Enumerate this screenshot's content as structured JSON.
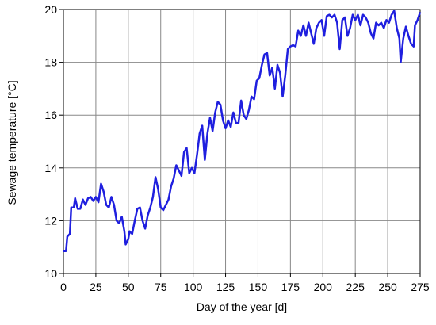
{
  "chart_data": {
    "type": "line",
    "xlabel": "Day of the year [d]",
    "ylabel": "Sewage temperature [°C]",
    "xlim": [
      0,
      275
    ],
    "ylim": [
      10,
      20
    ],
    "xticks": [
      0,
      25,
      50,
      75,
      100,
      125,
      150,
      175,
      200,
      225,
      250,
      275
    ],
    "yticks": [
      10,
      12,
      14,
      16,
      18,
      20
    ],
    "grid": true,
    "x": [
      0,
      2,
      3,
      5,
      6,
      8,
      9,
      11,
      13,
      15,
      17,
      19,
      21,
      23,
      25,
      27,
      29,
      31,
      33,
      35,
      37,
      39,
      41,
      43,
      45,
      47,
      48,
      50,
      51,
      53,
      55,
      57,
      59,
      61,
      63,
      65,
      67,
      69,
      71,
      73,
      75,
      77,
      79,
      81,
      83,
      85,
      87,
      89,
      91,
      93,
      95,
      97,
      99,
      101,
      103,
      105,
      107,
      109,
      111,
      113,
      115,
      117,
      119,
      121,
      123,
      125,
      127,
      129,
      131,
      133,
      135,
      137,
      139,
      141,
      143,
      145,
      147,
      149,
      151,
      153,
      155,
      157,
      159,
      161,
      163,
      165,
      167,
      169,
      171,
      173,
      175,
      177,
      179,
      181,
      183,
      185,
      187,
      189,
      191,
      193,
      195,
      197,
      199,
      201,
      203,
      205,
      207,
      209,
      211,
      213,
      215,
      217,
      219,
      221,
      223,
      225,
      227,
      229,
      231,
      233,
      235,
      237,
      239,
      241,
      243,
      245,
      247,
      249,
      251,
      253,
      255,
      257,
      259,
      260,
      262,
      264,
      266,
      268,
      270,
      271,
      273,
      275
    ],
    "series": [
      {
        "name": "Sewage temperature",
        "color": "#1f1fdf",
        "values": [
          10.85,
          10.85,
          11.4,
          11.5,
          12.5,
          12.5,
          12.85,
          12.45,
          12.45,
          12.8,
          12.6,
          12.85,
          12.9,
          12.75,
          12.9,
          12.7,
          13.4,
          13.1,
          12.6,
          12.5,
          12.9,
          12.6,
          12.0,
          11.9,
          12.15,
          11.6,
          11.1,
          11.3,
          11.6,
          11.5,
          12.0,
          12.45,
          12.5,
          12.0,
          11.7,
          12.2,
          12.5,
          12.9,
          13.65,
          13.2,
          12.5,
          12.4,
          12.6,
          12.8,
          13.3,
          13.6,
          14.1,
          13.9,
          13.7,
          14.6,
          14.75,
          13.8,
          14.0,
          13.8,
          14.5,
          15.3,
          15.6,
          14.3,
          15.3,
          15.9,
          15.4,
          16.1,
          16.5,
          16.4,
          15.8,
          15.5,
          15.8,
          15.55,
          16.1,
          15.7,
          15.7,
          16.55,
          16.0,
          15.85,
          16.2,
          16.7,
          16.6,
          17.3,
          17.4,
          17.9,
          18.3,
          18.35,
          17.5,
          17.8,
          17.0,
          17.9,
          17.6,
          16.7,
          17.5,
          18.5,
          18.6,
          18.65,
          18.6,
          19.2,
          19.0,
          19.4,
          19.0,
          19.5,
          19.1,
          18.7,
          19.3,
          19.5,
          19.6,
          19.0,
          19.75,
          19.8,
          19.7,
          19.8,
          19.5,
          18.5,
          19.6,
          19.7,
          19.0,
          19.3,
          19.8,
          19.6,
          19.8,
          19.4,
          19.8,
          19.7,
          19.5,
          19.1,
          18.9,
          19.5,
          19.4,
          19.5,
          19.3,
          19.6,
          19.5,
          19.8,
          19.95,
          19.3,
          18.9,
          18.0,
          18.9,
          19.35,
          19.0,
          18.7,
          18.6,
          19.4,
          19.6,
          19.9
        ]
      }
    ]
  }
}
